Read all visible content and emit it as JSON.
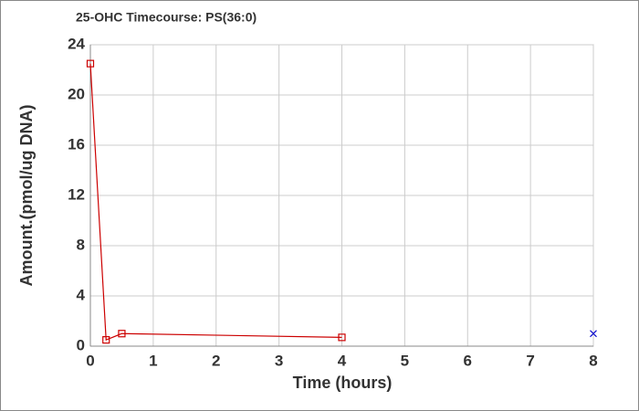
{
  "chart_data": {
    "type": "line",
    "title": "25-OHC Timecourse: PS(36:0)",
    "xlabel": "Time (hours)",
    "ylabel": "Amount.(pmol/ug DNA)",
    "series": [
      {
        "color": "#cc0000",
        "marker": "square",
        "x": [
          0,
          0.25,
          0.5,
          4
        ],
        "values": [
          22.5,
          0.5,
          1.0,
          0.7
        ]
      },
      {
        "color": "#0000cc",
        "marker": "x",
        "line": false,
        "x": [
          8
        ],
        "values": [
          1.0
        ]
      }
    ],
    "xlim": [
      0,
      8
    ],
    "xticks": [
      0,
      1,
      2,
      3,
      4,
      5,
      6,
      7,
      8
    ],
    "ylim": [
      0,
      24
    ],
    "yticks": [
      0,
      4,
      8,
      12,
      16,
      20,
      24
    ],
    "grid": true
  }
}
